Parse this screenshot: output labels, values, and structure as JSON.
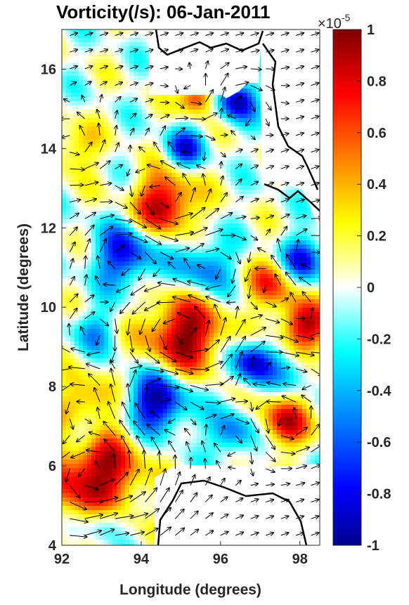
{
  "chart_data": {
    "type": "heatmap",
    "title": "Vorticity(/s): 06-Jan-2011",
    "xlabel": "Longitude (degrees)",
    "ylabel": "Latitude (degrees)",
    "xlim": [
      92,
      98.5
    ],
    "ylim": [
      4,
      17
    ],
    "x_ticks": [
      "92",
      "94",
      "96",
      "98"
    ],
    "y_ticks": [
      "4",
      "6",
      "8",
      "10",
      "12",
      "14",
      "16"
    ],
    "colorbar": {
      "range": [
        -1,
        1
      ],
      "exponent_label": "×10",
      "exponent_power": "-5",
      "ticks": [
        "-1",
        "-0.8",
        "-0.6",
        "-0.4",
        "-0.2",
        "0",
        "0.2",
        "0.4",
        "0.6",
        "0.8",
        "1"
      ],
      "colormap": "jet"
    },
    "vorticity_features": [
      {
        "lon": 94.6,
        "lat": 12.6,
        "value": 0.95,
        "radius": 0.55
      },
      {
        "lon": 95.1,
        "lat": 9.3,
        "value": 1.0,
        "radius": 0.7
      },
      {
        "lon": 92.8,
        "lat": 5.8,
        "value": 1.0,
        "radius": 0.85
      },
      {
        "lon": 98.1,
        "lat": 9.5,
        "value": 0.9,
        "radius": 0.45
      },
      {
        "lon": 97.6,
        "lat": 7.1,
        "value": 0.8,
        "radius": 0.45
      },
      {
        "lon": 97.3,
        "lat": 10.6,
        "value": 0.6,
        "radius": 0.45
      },
      {
        "lon": 95.4,
        "lat": 15.3,
        "value": 0.8,
        "radius": 0.3
      },
      {
        "lon": 92.3,
        "lat": 14.0,
        "value": 0.4,
        "radius": 0.45
      },
      {
        "lon": 92.6,
        "lat": 7.6,
        "value": 0.5,
        "radius": 0.5
      },
      {
        "lon": 94.4,
        "lat": 7.6,
        "value": -1.0,
        "radius": 0.55
      },
      {
        "lon": 96.8,
        "lat": 8.6,
        "value": -0.9,
        "radius": 0.4
      },
      {
        "lon": 93.6,
        "lat": 11.3,
        "value": -0.8,
        "radius": 0.55
      },
      {
        "lon": 95.6,
        "lat": 11.0,
        "value": -0.6,
        "radius": 0.5
      },
      {
        "lon": 96.4,
        "lat": 15.2,
        "value": -0.9,
        "radius": 0.35
      },
      {
        "lon": 95.1,
        "lat": 14.0,
        "value": -0.7,
        "radius": 0.35
      },
      {
        "lon": 98.1,
        "lat": 11.2,
        "value": -0.8,
        "radius": 0.4
      },
      {
        "lon": 92.5,
        "lat": 6.8,
        "value": -0.5,
        "radius": 0.4
      },
      {
        "lon": 92.8,
        "lat": 9.4,
        "value": -0.4,
        "radius": 0.4
      },
      {
        "lon": 93.1,
        "lat": 4.6,
        "value": -0.5,
        "radius": 0.35
      },
      {
        "lon": 96.3,
        "lat": 6.8,
        "value": -0.6,
        "radius": 0.4
      },
      {
        "lon": 97.9,
        "lat": 8.4,
        "value": -0.3,
        "radius": 0.4
      }
    ]
  }
}
